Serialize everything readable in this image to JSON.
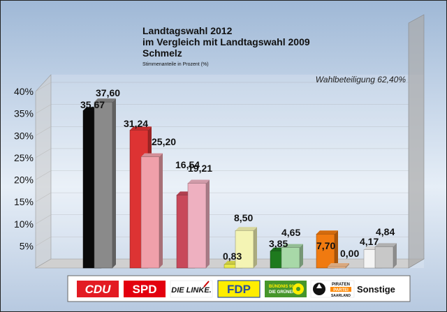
{
  "chart_data": {
    "type": "bar",
    "title": "Landtagswahl 2012",
    "subtitle_1": "im Vergleich mit Landtagswahl 2009",
    "subtitle_2": "Schmelz",
    "subtitle_3": "Stimmenanteile in Prozent (%)",
    "annotation": "Wahlbeteiligung 62,40%",
    "categories": [
      "CDU",
      "SPD",
      "DIE LINKE.",
      "FDP",
      "BÜNDNIS 90 DIE GRÜNEN",
      "PIRATEN PARTEI SAARLAND",
      "Sonstige"
    ],
    "series": [
      {
        "name": "2012",
        "values": [
          35.67,
          31.24,
          16.54,
          0.83,
          3.85,
          7.7,
          4.17
        ],
        "labels": [
          "35,67",
          "31,24",
          "16,54",
          "0,83",
          "3,85",
          "7,70",
          "4,17"
        ]
      },
      {
        "name": "2009",
        "values": [
          37.6,
          25.2,
          19.21,
          8.5,
          4.65,
          0.0,
          4.84
        ],
        "labels": [
          "37,60",
          "25,20",
          "19,21",
          "8,50",
          "4,65",
          "0,00",
          "4,84"
        ]
      }
    ],
    "y_ticks": [
      "5%",
      "10%",
      "15%",
      "20%",
      "25%",
      "30%",
      "35%",
      "40%"
    ],
    "ylim": [
      0,
      40
    ],
    "grid": true,
    "colors_2012": [
      "#0a0a0a",
      "#dd3333",
      "#c8485a",
      "#e8e84a",
      "#1e7a1e",
      "#f07a10",
      "#f4f4f4"
    ],
    "colors_2009": [
      "#8a8a8a",
      "#f0a0aa",
      "#eeb0c0",
      "#f4f4b4",
      "#a8d8a8",
      "#f8c090",
      "#c8c8c8"
    ],
    "logos": [
      "CDU",
      "SPD",
      "DIE LINKE.",
      "FDP",
      "BÜNDNIS 90",
      "DIE GRÜNEN",
      "PIRATEN",
      "PARTEI",
      "SAARLAND"
    ],
    "sonstige_label": "Sonstige"
  }
}
